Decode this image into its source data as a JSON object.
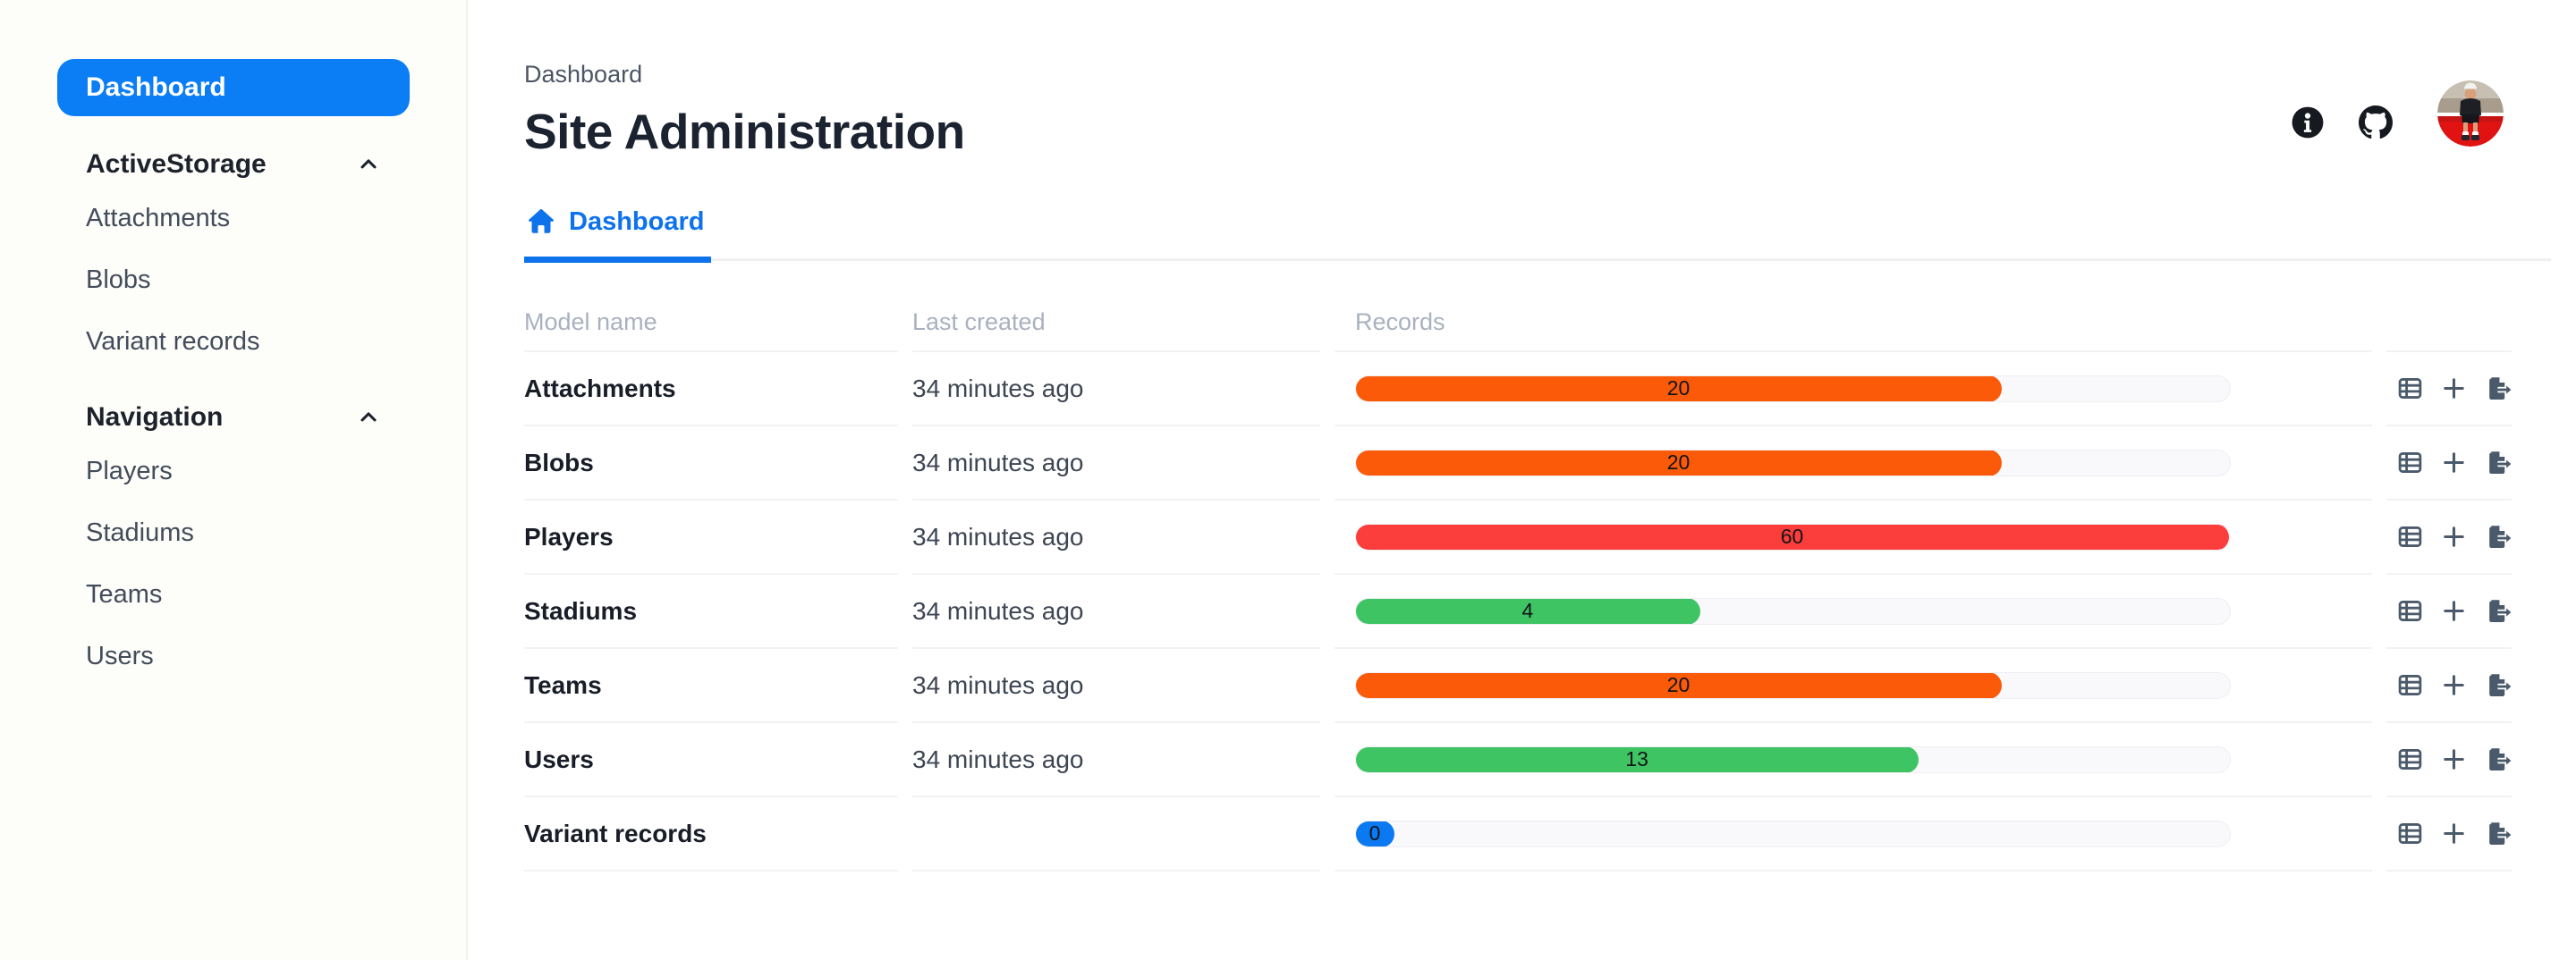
{
  "colors": {
    "accent_blue": "#0d72ec",
    "sidebar_active_blue": "#0b7df5",
    "bar_orange": "#fb5a09",
    "bar_red": "#fb3d3c",
    "bar_green": "#3ec463",
    "bar_blue": "#0b79f2",
    "bar_track": "#f9f9fc"
  },
  "sidebar": {
    "dashboard_label": "Dashboard",
    "sections": [
      {
        "label": "ActiveStorage",
        "chevron": "chevron-up-icon",
        "items": [
          "Attachments",
          "Blobs",
          "Variant records"
        ]
      },
      {
        "label": "Navigation",
        "chevron": "chevron-up-icon",
        "items": [
          "Players",
          "Stadiums",
          "Teams",
          "Users"
        ]
      }
    ]
  },
  "header": {
    "breadcrumb": "Dashboard",
    "title": "Site Administration",
    "icons": [
      "info-icon",
      "github-icon",
      "user-avatar"
    ]
  },
  "tabs": [
    {
      "label": "Dashboard",
      "icon": "home-icon",
      "active": true
    }
  ],
  "table": {
    "columns": [
      "Model name",
      "Last created",
      "Records"
    ],
    "row_actions": [
      "table-icon",
      "plus-icon",
      "export-icon"
    ],
    "rows": [
      {
        "model": "Attachments",
        "last_created": "34 minutes ago",
        "records": 20,
        "bar_color": "#fb5a09",
        "bar_pct": 74
      },
      {
        "model": "Blobs",
        "last_created": "34 minutes ago",
        "records": 20,
        "bar_color": "#fb5a09",
        "bar_pct": 74
      },
      {
        "model": "Players",
        "last_created": "34 minutes ago",
        "records": 60,
        "bar_color": "#fb3d3c",
        "bar_pct": 100
      },
      {
        "model": "Stadiums",
        "last_created": "34 minutes ago",
        "records": 4,
        "bar_color": "#3ec463",
        "bar_pct": 39.5
      },
      {
        "model": "Teams",
        "last_created": "34 minutes ago",
        "records": 20,
        "bar_color": "#fb5a09",
        "bar_pct": 74
      },
      {
        "model": "Users",
        "last_created": "34 minutes ago",
        "records": 13,
        "bar_color": "#3ec463",
        "bar_pct": 64.5
      },
      {
        "model": "Variant records",
        "last_created": "",
        "records": 0,
        "bar_color": "#0b79f2",
        "bar_pct": 4.5
      }
    ]
  }
}
